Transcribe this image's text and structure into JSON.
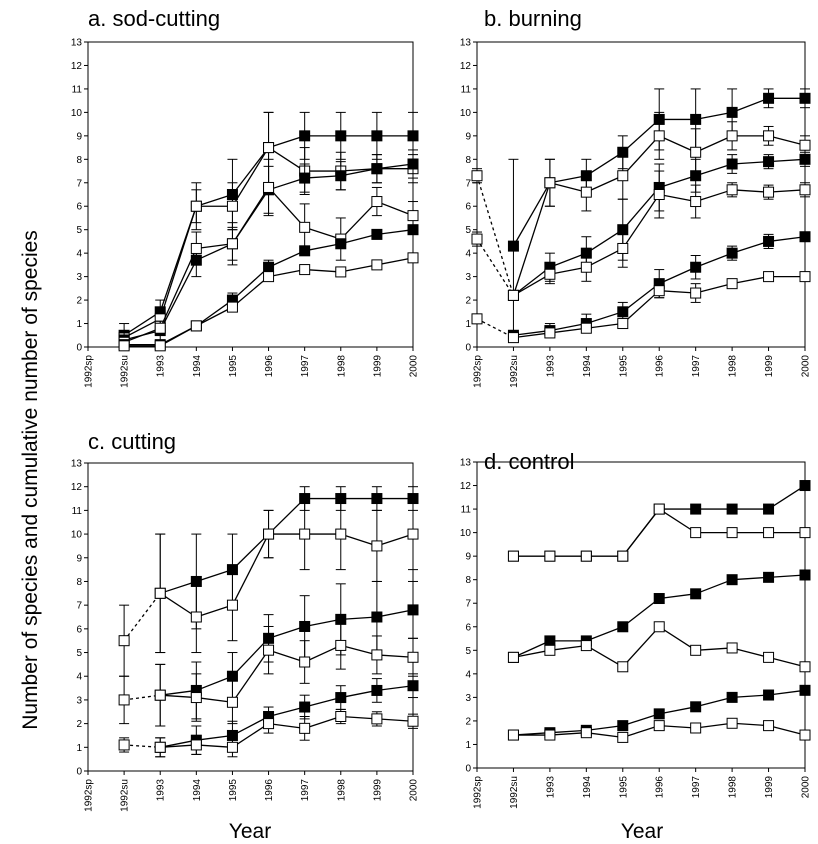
{
  "figure": {
    "ylabel": "Number of species and cumulative number of species",
    "xlabel": "Year"
  },
  "chart_data": [
    {
      "type": "line",
      "title": "a. sod-cutting",
      "xlabel": "",
      "ylabel": "",
      "categories": [
        "1992sp",
        "1992su",
        "1993",
        "1994",
        "1995",
        "1996",
        "1997",
        "1998",
        "1999",
        "2000"
      ],
      "ylim": [
        0,
        13
      ],
      "yticks": [
        0,
        1,
        2,
        3,
        4,
        5,
        6,
        7,
        8,
        9,
        10,
        11,
        12,
        13
      ],
      "series": [
        {
          "marker": "filled",
          "values": [
            null,
            0.5,
            1.5,
            6.0,
            6.5,
            8.5,
            9.0,
            9.0,
            9.0,
            9.0
          ],
          "err": [
            0,
            0.5,
            0.5,
            1.0,
            1.5,
            1.5,
            1.0,
            1.0,
            1.0,
            1.0
          ],
          "dashed_link": false
        },
        {
          "marker": "open",
          "values": [
            null,
            0.4,
            1.2,
            6.0,
            6.0,
            8.5,
            7.5,
            7.5,
            7.6,
            7.6
          ],
          "err": [
            0,
            0.3,
            0.3,
            0.7,
            1.0,
            1.5,
            1.0,
            0.8,
            0.6,
            0.6
          ],
          "dashed_link": false
        },
        {
          "marker": "filled",
          "values": [
            null,
            0.3,
            0.7,
            3.7,
            4.4,
            6.7,
            7.2,
            7.3,
            7.6,
            7.8
          ],
          "err": [
            0,
            0.3,
            0.4,
            0.7,
            0.7,
            1.0,
            0.6,
            0.6,
            0.6,
            0.6
          ],
          "dashed_link": false
        },
        {
          "marker": "open",
          "values": [
            null,
            0.2,
            0.8,
            4.2,
            4.4,
            6.8,
            5.1,
            4.6,
            6.2,
            5.6
          ],
          "err": [
            0,
            0.3,
            0.3,
            0.7,
            0.9,
            1.2,
            1.0,
            0.9,
            0.6,
            0.6
          ],
          "dashed_link": false
        },
        {
          "marker": "filled",
          "values": [
            null,
            0.1,
            0.1,
            0.9,
            2.0,
            3.4,
            4.1,
            4.4,
            4.8,
            5.0
          ],
          "err": [
            0,
            0.1,
            0.1,
            0.2,
            0.3,
            0.3,
            0.2,
            0.2,
            0.2,
            0.2
          ],
          "dashed_link": false
        },
        {
          "marker": "open",
          "values": [
            null,
            0.05,
            0.05,
            0.9,
            1.7,
            3.0,
            3.3,
            3.2,
            3.5,
            3.8
          ],
          "err": [
            0,
            0.05,
            0.05,
            0.2,
            0.2,
            0.2,
            0.2,
            0.1,
            0.1,
            0.1
          ],
          "dashed_link": false
        }
      ]
    },
    {
      "type": "line",
      "title": "b. burning",
      "xlabel": "",
      "ylabel": "",
      "categories": [
        "1992sp",
        "1992su",
        "1993",
        "1994",
        "1995",
        "1996",
        "1997",
        "1998",
        "1999",
        "2000"
      ],
      "ylim": [
        0,
        13
      ],
      "yticks": [
        0,
        1,
        2,
        3,
        4,
        5,
        6,
        7,
        8,
        9,
        10,
        11,
        12,
        13
      ],
      "series": [
        {
          "marker": "filled",
          "values": [
            null,
            4.3,
            7.0,
            7.3,
            8.3,
            9.7,
            9.7,
            10.0,
            10.6,
            10.6
          ],
          "err": [
            0,
            3.7,
            1.0,
            0.7,
            0.7,
            1.3,
            1.3,
            1.0,
            0.4,
            0.4
          ],
          "dashed_link": false
        },
        {
          "marker": "open",
          "values": [
            7.3,
            2.2,
            7.0,
            6.6,
            7.3,
            9.0,
            8.3,
            9.0,
            9.0,
            8.6
          ],
          "err": [
            0.3,
            0,
            1.0,
            0.8,
            1.0,
            1.0,
            1.0,
            0.6,
            0.4,
            0.4
          ],
          "dashed_link": true
        },
        {
          "marker": "filled",
          "values": [
            null,
            2.2,
            3.4,
            4.0,
            5.0,
            6.8,
            7.3,
            7.8,
            7.9,
            8.0
          ],
          "err": [
            0,
            0.2,
            0.6,
            0.7,
            1.3,
            1.0,
            0.7,
            0.4,
            0.3,
            0.3
          ],
          "dashed_link": false
        },
        {
          "marker": "open",
          "values": [
            4.6,
            2.2,
            3.1,
            3.4,
            4.2,
            6.5,
            6.2,
            6.7,
            6.6,
            6.7
          ],
          "err": [
            0.3,
            0,
            0.4,
            0.6,
            0.8,
            1.0,
            0.7,
            0.3,
            0.3,
            0.3
          ],
          "dashed_link": true
        },
        {
          "marker": "filled",
          "values": [
            null,
            0.5,
            0.7,
            1.0,
            1.5,
            2.7,
            3.4,
            4.0,
            4.5,
            4.7
          ],
          "err": [
            0,
            0.2,
            0.3,
            0.4,
            0.4,
            0.6,
            0.5,
            0.3,
            0.3,
            0.2
          ],
          "dashed_link": false
        },
        {
          "marker": "open",
          "values": [
            1.2,
            0.4,
            0.6,
            0.8,
            1.0,
            2.4,
            2.3,
            2.7,
            3.0,
            3.0
          ],
          "err": [
            0.2,
            0.1,
            0.2,
            0.2,
            0.2,
            0.3,
            0.4,
            0.2,
            0.2,
            0.2
          ],
          "dashed_link": true
        }
      ]
    },
    {
      "type": "line",
      "title": "c. cutting",
      "xlabel": "",
      "ylabel": "",
      "categories": [
        "1992sp",
        "1992su",
        "1993",
        "1994",
        "1995",
        "1996",
        "1997",
        "1998",
        "1999",
        "2000"
      ],
      "ylim": [
        0,
        13
      ],
      "yticks": [
        0,
        1,
        2,
        3,
        4,
        5,
        6,
        7,
        8,
        9,
        10,
        11,
        12,
        13
      ],
      "series": [
        {
          "marker": "filled",
          "values": [
            null,
            null,
            7.5,
            8.0,
            8.5,
            10.0,
            11.5,
            11.5,
            11.5,
            11.5
          ],
          "err": [
            0,
            0,
            2.5,
            2.0,
            1.5,
            1.0,
            0.5,
            0.5,
            0.5,
            0.5
          ],
          "dashed_link": false
        },
        {
          "marker": "open",
          "values": [
            null,
            5.5,
            7.5,
            6.5,
            7.0,
            10.0,
            10.0,
            10.0,
            9.5,
            10.0
          ],
          "err": [
            0,
            1.5,
            2.5,
            1.5,
            1.5,
            1.0,
            1.5,
            1.5,
            1.5,
            1.5
          ],
          "dashed_link": true
        },
        {
          "marker": "filled",
          "values": [
            null,
            null,
            3.2,
            3.4,
            4.0,
            5.6,
            6.1,
            6.4,
            6.5,
            6.8
          ],
          "err": [
            0,
            0,
            1.3,
            1.2,
            1.0,
            1.0,
            1.3,
            1.5,
            1.5,
            1.2
          ],
          "dashed_link": false
        },
        {
          "marker": "open",
          "values": [
            null,
            3.0,
            3.2,
            3.1,
            2.9,
            5.1,
            4.6,
            5.3,
            4.9,
            4.8
          ],
          "err": [
            0,
            1.0,
            1.3,
            1.0,
            0.9,
            1.0,
            0.9,
            1.0,
            0.8,
            0.8
          ],
          "dashed_link": true
        },
        {
          "marker": "filled",
          "values": [
            null,
            null,
            1.0,
            1.3,
            1.5,
            2.3,
            2.7,
            3.1,
            3.4,
            3.6
          ],
          "err": [
            0,
            0,
            0.4,
            0.6,
            0.6,
            0.4,
            0.5,
            0.5,
            0.5,
            0.5
          ],
          "dashed_link": false
        },
        {
          "marker": "open",
          "values": [
            null,
            1.1,
            1.0,
            1.1,
            1.0,
            2.0,
            1.8,
            2.3,
            2.2,
            2.1
          ],
          "err": [
            0,
            0.3,
            0.4,
            0.4,
            0.4,
            0.4,
            0.5,
            0.3,
            0.3,
            0.3
          ],
          "dashed_link": true
        }
      ]
    },
    {
      "type": "line",
      "title": "d. control",
      "xlabel": "",
      "ylabel": "",
      "categories": [
        "1992sp",
        "1992su",
        "1993",
        "1994",
        "1995",
        "1996",
        "1997",
        "1998",
        "1999",
        "2000"
      ],
      "ylim": [
        0,
        13
      ],
      "yticks": [
        0,
        1,
        2,
        3,
        4,
        5,
        6,
        7,
        8,
        9,
        10,
        11,
        12,
        13
      ],
      "series": [
        {
          "marker": "filled",
          "values": [
            null,
            9.0,
            9.0,
            9.0,
            9.0,
            11.0,
            11.0,
            11.0,
            11.0,
            12.0
          ],
          "err": null,
          "dashed_link": false
        },
        {
          "marker": "open",
          "values": [
            null,
            9.0,
            9.0,
            9.0,
            9.0,
            11.0,
            10.0,
            10.0,
            10.0,
            10.0
          ],
          "err": null,
          "dashed_link": false
        },
        {
          "marker": "filled",
          "values": [
            null,
            4.7,
            5.4,
            5.4,
            6.0,
            7.2,
            7.4,
            8.0,
            8.1,
            8.2
          ],
          "err": null,
          "dashed_link": false
        },
        {
          "marker": "open",
          "values": [
            null,
            4.7,
            5.0,
            5.2,
            4.3,
            6.0,
            5.0,
            5.1,
            4.7,
            4.3
          ],
          "err": null,
          "dashed_link": false
        },
        {
          "marker": "filled",
          "values": [
            null,
            1.4,
            1.5,
            1.6,
            1.8,
            2.3,
            2.6,
            3.0,
            3.1,
            3.3
          ],
          "err": null,
          "dashed_link": false
        },
        {
          "marker": "open",
          "values": [
            null,
            1.4,
            1.4,
            1.5,
            1.3,
            1.8,
            1.7,
            1.9,
            1.8,
            1.4
          ],
          "err": null,
          "dashed_link": false
        }
      ]
    }
  ]
}
